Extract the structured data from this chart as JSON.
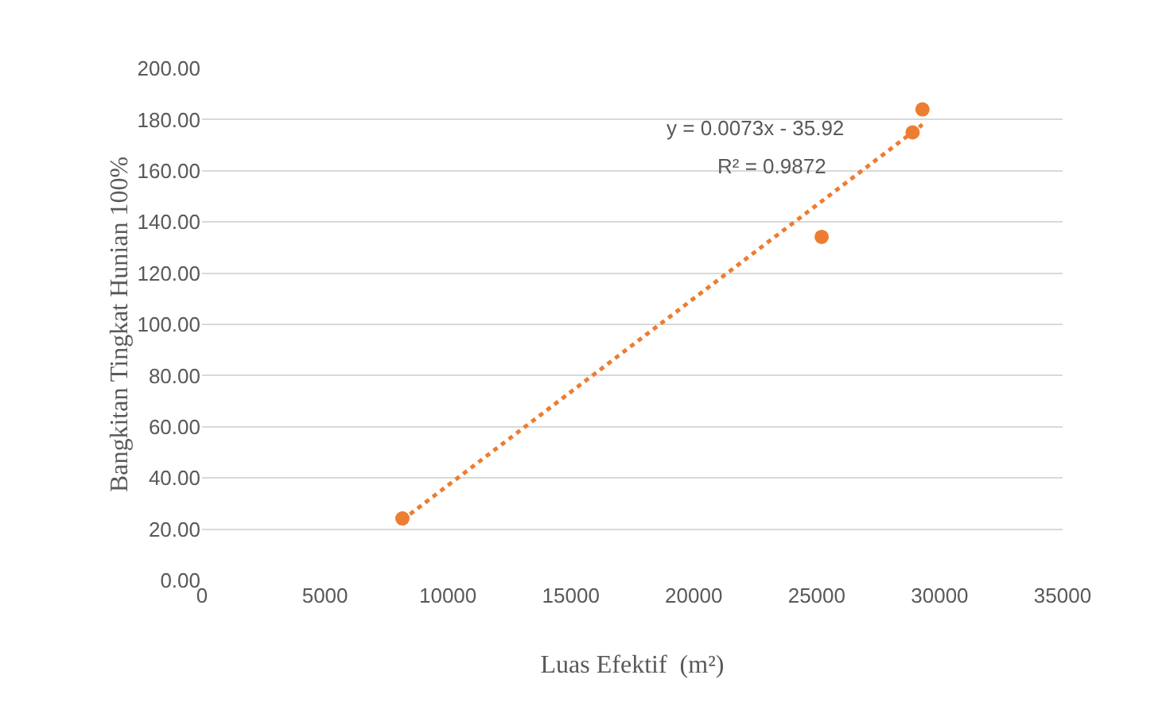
{
  "chart_data": {
    "type": "scatter",
    "xlabel": "Luas Efektif  (m²)",
    "ylabel": "Bangkitan Tingkat Hunian 100%",
    "series": [
      {
        "color": "#ed7d31",
        "marker": "circle",
        "x": [
          8150,
          25200,
          28900,
          29300
        ],
        "values": [
          24.2,
          134.2,
          175,
          184
        ]
      },
      {
        "type": "line",
        "color": "#ed7d31",
        "marker": "none",
        "line_style": "dotted",
        "x": [
          8150,
          29300
        ],
        "values": [
          23.6,
          178.0
        ]
      }
    ],
    "annotations": [
      "y = 0.0073x - 35.92",
      "R² = 0.9872"
    ],
    "xlim": [
      0,
      35000
    ],
    "xticks": [
      0,
      5000,
      10000,
      15000,
      20000,
      25000,
      30000,
      35000
    ],
    "ylim": [
      0,
      200
    ],
    "yticks": [
      {
        "value": 0,
        "label": "0.00"
      },
      {
        "value": 20,
        "label": "20.00"
      },
      {
        "value": 40,
        "label": "40.00"
      },
      {
        "value": 60,
        "label": "60.00"
      },
      {
        "value": 80,
        "label": "80.00"
      },
      {
        "value": 100,
        "label": "100.00"
      },
      {
        "value": 120,
        "label": "120.00"
      },
      {
        "value": 140,
        "label": "140.00"
      },
      {
        "value": 160,
        "label": "160.00"
      },
      {
        "value": 180,
        "label": "180.00"
      },
      {
        "value": 200,
        "label": "200.00"
      }
    ],
    "grid": "y"
  }
}
